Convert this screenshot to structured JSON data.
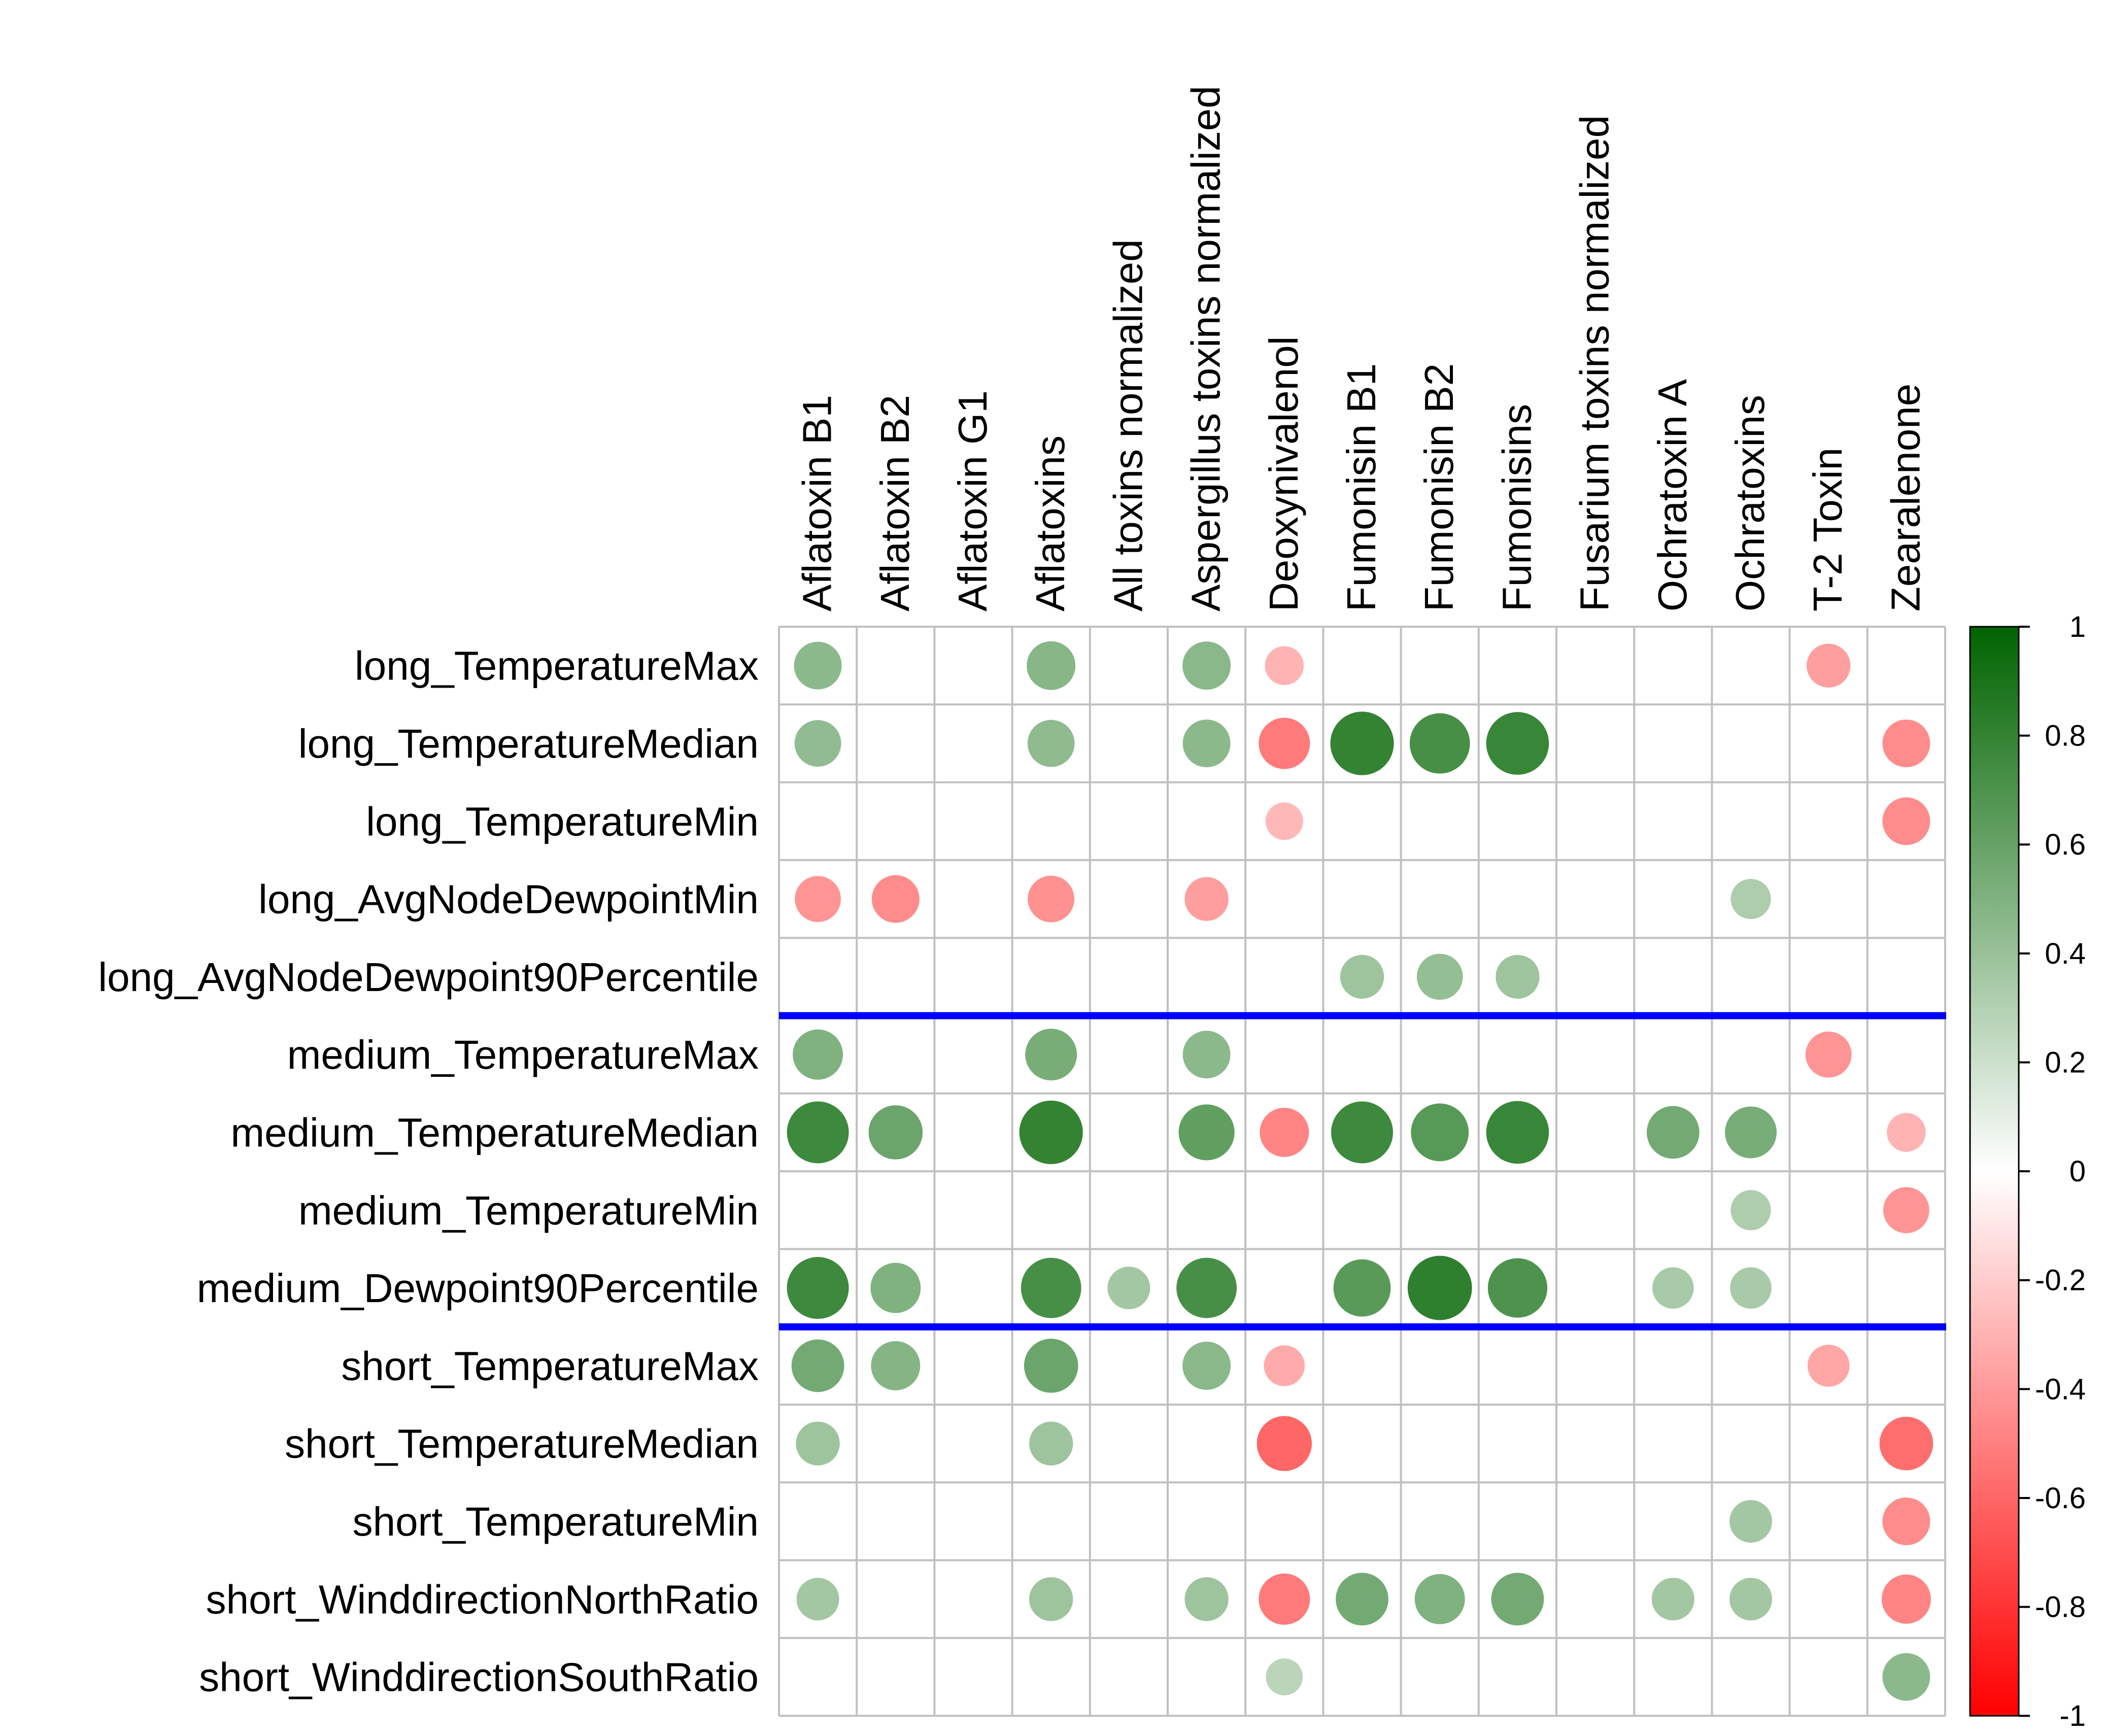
{
  "chart_data": {
    "type": "heatmap",
    "style": "correlation-circles",
    "columns": [
      "Aflatoxin B1",
      "Aflatoxin B2",
      "Aflatoxin G1",
      "Aflatoxins",
      "All toxins normalized",
      "Aspergillus toxins normalized",
      "Deoxynivalenol",
      "Fumonisin B1",
      "Fumonisin B2",
      "Fumonisins",
      "Fusarium toxins normalized",
      "Ochratoxin A",
      "Ochratoxins",
      "T-2 Toxin",
      "Zearalenone"
    ],
    "rows": [
      "long_TemperatureMax",
      "long_TemperatureMedian",
      "long_TemperatureMin",
      "long_AvgNodeDewpointMin",
      "long_AvgNodeDewpoint90Percentile",
      "medium_TemperatureMax",
      "medium_TemperatureMedian",
      "medium_TemperatureMin",
      "medium_Dewpoint90Percentile",
      "short_TemperatureMax",
      "short_TemperatureMedian",
      "short_TemperatureMin",
      "short_WinddirectionNorthRatio",
      "short_WinddirectionSouthRatio"
    ],
    "values": [
      [
        0.45,
        null,
        null,
        0.47,
        null,
        0.46,
        -0.3,
        null,
        null,
        null,
        null,
        null,
        null,
        -0.38,
        null
      ],
      [
        0.43,
        null,
        null,
        0.44,
        null,
        0.45,
        -0.52,
        0.8,
        0.72,
        0.78,
        null,
        null,
        null,
        null,
        -0.45
      ],
      [
        null,
        null,
        null,
        null,
        null,
        null,
        -0.28,
        null,
        null,
        null,
        null,
        null,
        null,
        null,
        -0.45
      ],
      [
        -0.42,
        -0.45,
        null,
        -0.43,
        null,
        -0.38,
        null,
        null,
        null,
        null,
        null,
        null,
        0.32,
        null,
        null
      ],
      [
        null,
        null,
        null,
        null,
        null,
        null,
        null,
        0.38,
        0.42,
        0.38,
        null,
        null,
        null,
        null,
        null
      ],
      [
        0.5,
        null,
        null,
        0.53,
        null,
        0.45,
        null,
        null,
        null,
        null,
        null,
        null,
        null,
        -0.42,
        null
      ],
      [
        0.76,
        0.58,
        null,
        0.8,
        null,
        0.62,
        -0.48,
        0.76,
        0.66,
        0.78,
        null,
        0.55,
        0.53,
        null,
        -0.3
      ],
      [
        null,
        null,
        null,
        null,
        null,
        null,
        null,
        null,
        null,
        null,
        null,
        null,
        0.32,
        null,
        -0.42
      ],
      [
        0.76,
        0.5,
        null,
        0.72,
        0.36,
        0.72,
        null,
        0.65,
        0.82,
        0.7,
        null,
        0.34,
        0.34,
        null,
        null
      ],
      [
        0.55,
        0.48,
        null,
        0.58,
        null,
        0.46,
        -0.33,
        null,
        null,
        null,
        null,
        null,
        null,
        -0.35,
        null
      ],
      [
        0.38,
        null,
        null,
        0.38,
        null,
        null,
        -0.6,
        null,
        null,
        null,
        null,
        null,
        null,
        null,
        -0.57
      ],
      [
        null,
        null,
        null,
        null,
        null,
        null,
        null,
        null,
        null,
        null,
        null,
        null,
        0.36,
        null,
        -0.45
      ],
      [
        0.36,
        null,
        null,
        0.38,
        null,
        0.38,
        -0.52,
        0.55,
        0.5,
        0.55,
        null,
        0.36,
        0.36,
        null,
        -0.48
      ],
      [
        null,
        null,
        null,
        null,
        null,
        null,
        0.27,
        null,
        null,
        null,
        null,
        null,
        null,
        null,
        0.45
      ]
    ],
    "group_separators_after_row": [
      5,
      9
    ],
    "colorbar": {
      "range": [
        -1,
        1
      ],
      "ticks": [
        "1",
        "0.8",
        "0.6",
        "0.4",
        "0.2",
        "0",
        "-0.2",
        "-0.4",
        "-0.6",
        "-0.8",
        "-1"
      ],
      "low_color": "#ff0000",
      "mid_color": "#ffffff",
      "high_color": "#006400"
    },
    "colors": {
      "grid": "#c0c0c0",
      "separator": "#0000ff"
    }
  }
}
